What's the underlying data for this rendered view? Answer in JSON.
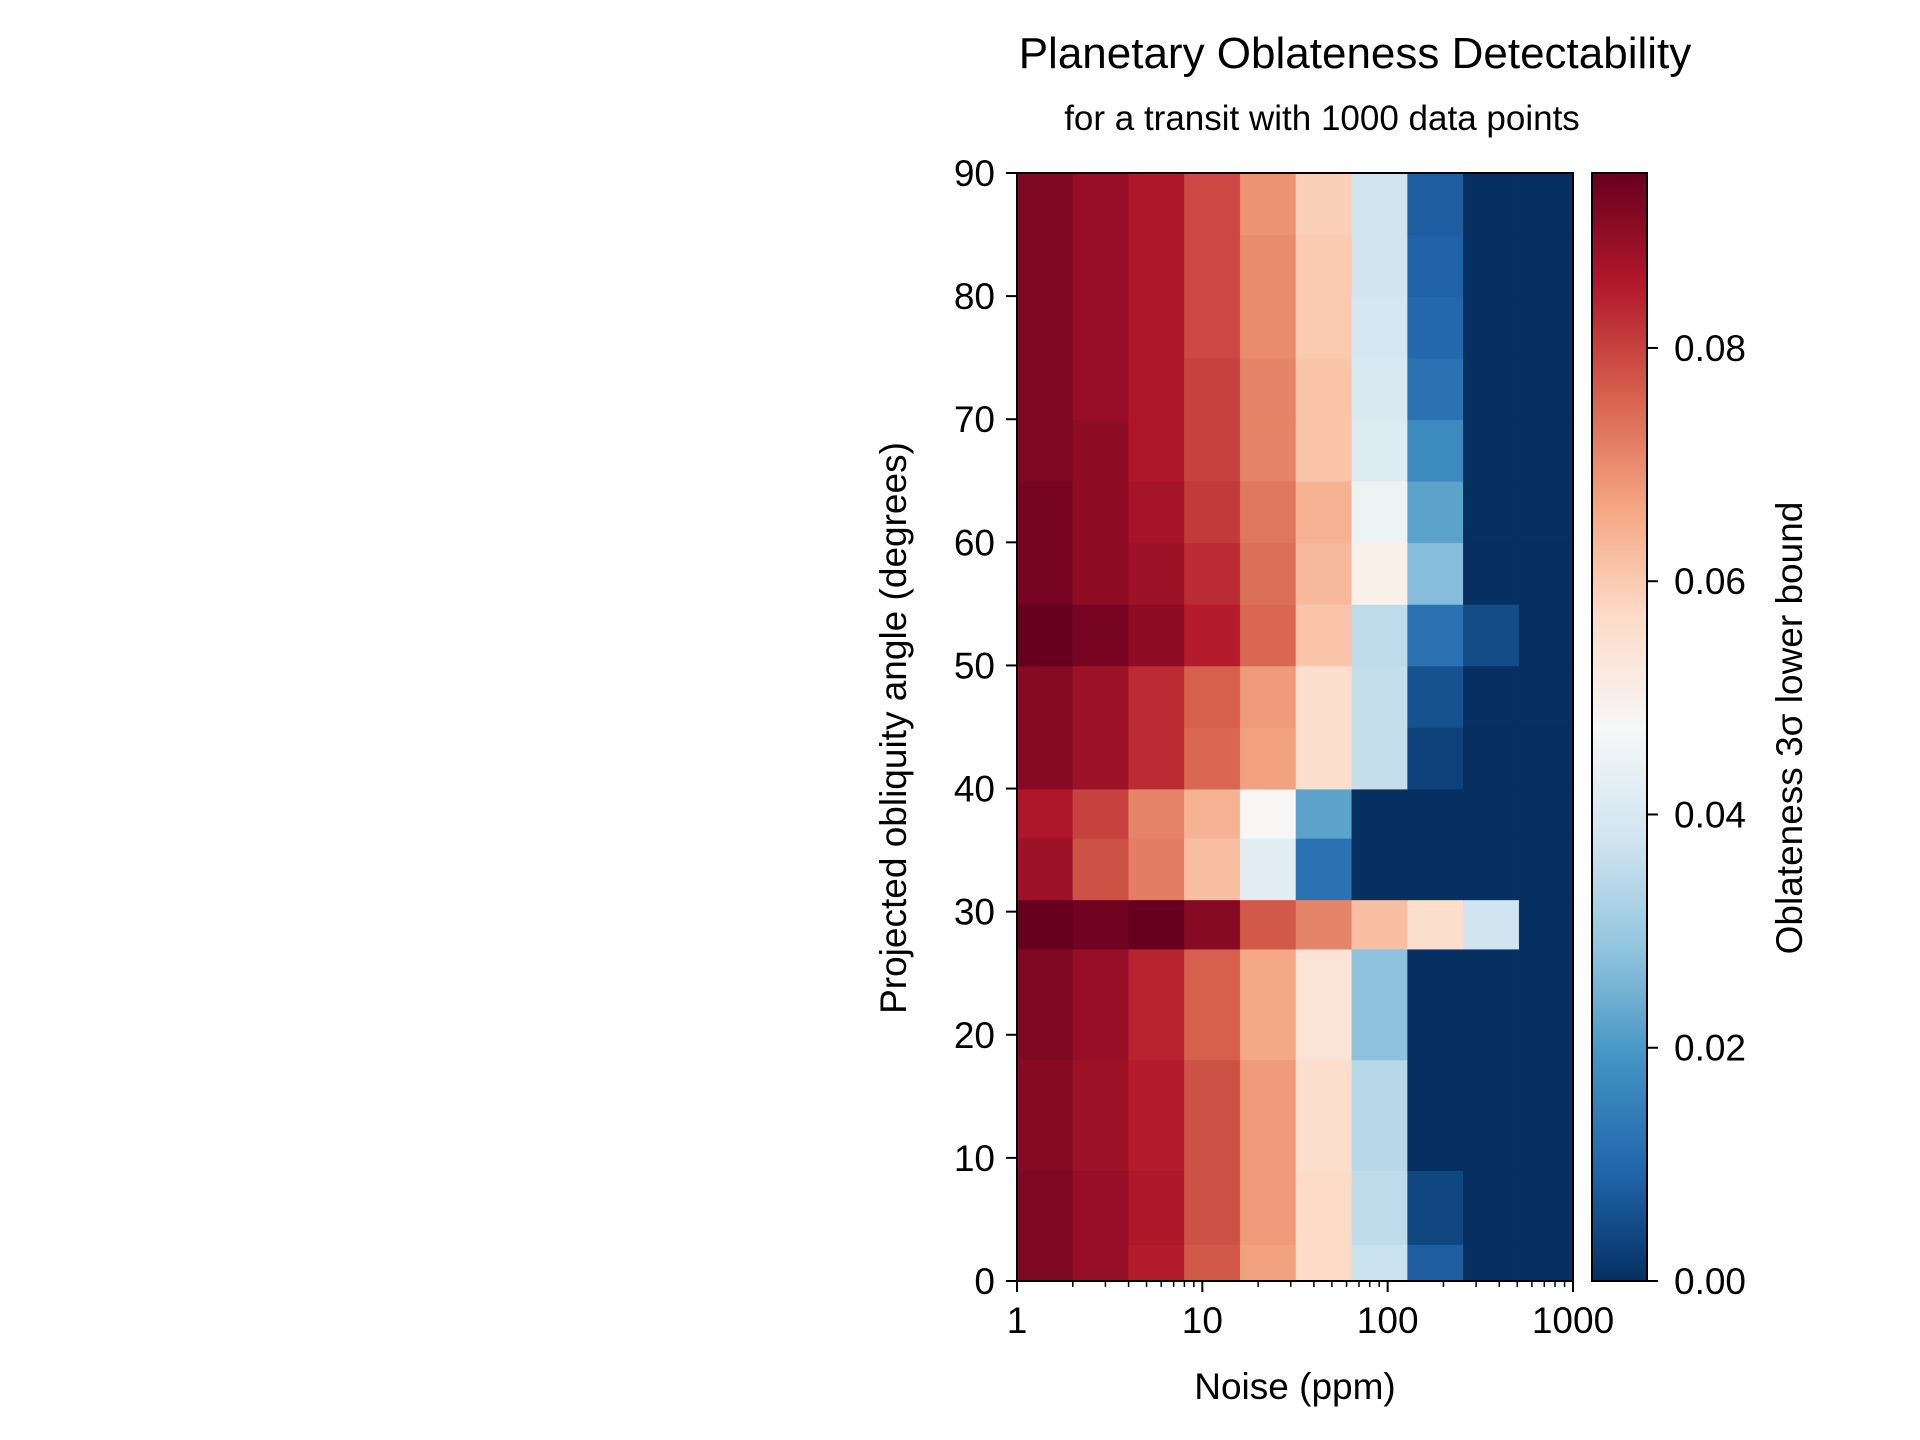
{
  "chart_data": {
    "type": "heatmap",
    "title": "Planetary Oblateness Detectability",
    "subtitle": "for a transit with 1000 data points",
    "xlabel": "Noise (ppm)",
    "ylabel": "Projected obliquity angle (degrees)",
    "colorbar_label": "Oblateness 3σ lower bound",
    "x_scale": "log",
    "xlim": [
      1,
      1000
    ],
    "ylim": [
      0,
      90
    ],
    "x_ticks": [
      1,
      10,
      100,
      1000
    ],
    "x_tick_labels": [
      "1",
      "10",
      "100",
      "1000"
    ],
    "y_ticks": [
      0,
      10,
      20,
      30,
      40,
      50,
      60,
      70,
      80,
      90
    ],
    "y_tick_labels": [
      "0",
      "10",
      "20",
      "30",
      "40",
      "50",
      "60",
      "70",
      "80",
      "90"
    ],
    "colorbar_ticks": [
      0.0,
      0.02,
      0.04,
      0.06,
      0.08
    ],
    "colorbar_tick_labels": [
      "0.00",
      "0.02",
      "0.04",
      "0.06",
      "0.08"
    ],
    "colormap": "RdBu_r",
    "clim": [
      0.0,
      0.095
    ],
    "x_edges": [
      1,
      2,
      4,
      8,
      16,
      32,
      64,
      128,
      256,
      512,
      1000
    ],
    "y_edges": [
      0,
      3,
      9,
      18,
      27,
      31,
      36,
      40,
      45,
      50,
      55,
      60,
      65,
      70,
      75,
      80,
      85,
      90
    ],
    "values": [
      [
        0.092,
        0.089,
        0.085,
        0.077,
        0.067,
        0.057,
        0.037,
        0.008,
        0.0,
        0.0
      ],
      [
        0.092,
        0.089,
        0.086,
        0.078,
        0.068,
        0.057,
        0.035,
        0.004,
        0.0,
        0.0
      ],
      [
        0.091,
        0.088,
        0.085,
        0.078,
        0.068,
        0.056,
        0.034,
        0.0,
        0.0,
        0.0
      ],
      [
        0.092,
        0.089,
        0.084,
        0.076,
        0.066,
        0.054,
        0.028,
        0.0,
        0.0,
        0.0
      ],
      [
        0.096,
        0.094,
        0.095,
        0.091,
        0.077,
        0.071,
        0.062,
        0.056,
        0.038,
        0.0
      ],
      [
        0.088,
        0.078,
        0.072,
        0.062,
        0.042,
        0.012,
        0.0,
        0.0,
        0.0,
        0.0
      ],
      [
        0.086,
        0.08,
        0.071,
        0.064,
        0.048,
        0.022,
        0.0,
        0.0,
        0.0,
        0.0
      ],
      [
        0.091,
        0.088,
        0.083,
        0.075,
        0.067,
        0.056,
        0.036,
        0.003,
        0.0,
        0.0
      ],
      [
        0.091,
        0.088,
        0.083,
        0.076,
        0.068,
        0.056,
        0.036,
        0.006,
        0.0,
        0.0
      ],
      [
        0.095,
        0.093,
        0.09,
        0.085,
        0.075,
        0.061,
        0.035,
        0.012,
        0.005,
        0.0
      ],
      [
        0.093,
        0.09,
        0.088,
        0.083,
        0.074,
        0.063,
        0.05,
        0.027,
        0.0,
        0.0
      ],
      [
        0.093,
        0.09,
        0.087,
        0.081,
        0.073,
        0.064,
        0.045,
        0.022,
        0.0,
        0.0
      ],
      [
        0.092,
        0.09,
        0.086,
        0.08,
        0.071,
        0.061,
        0.041,
        0.017,
        0.0,
        0.0
      ],
      [
        0.092,
        0.089,
        0.086,
        0.08,
        0.071,
        0.061,
        0.04,
        0.012,
        0.0,
        0.0
      ],
      [
        0.092,
        0.089,
        0.086,
        0.079,
        0.07,
        0.06,
        0.039,
        0.01,
        0.0,
        0.0
      ],
      [
        0.092,
        0.089,
        0.086,
        0.079,
        0.07,
        0.06,
        0.038,
        0.009,
        0.0,
        0.0
      ],
      [
        0.092,
        0.089,
        0.086,
        0.079,
        0.069,
        0.059,
        0.038,
        0.008,
        0.0,
        0.0
      ]
    ],
    "grid": false,
    "legend": "colorbar-right"
  }
}
